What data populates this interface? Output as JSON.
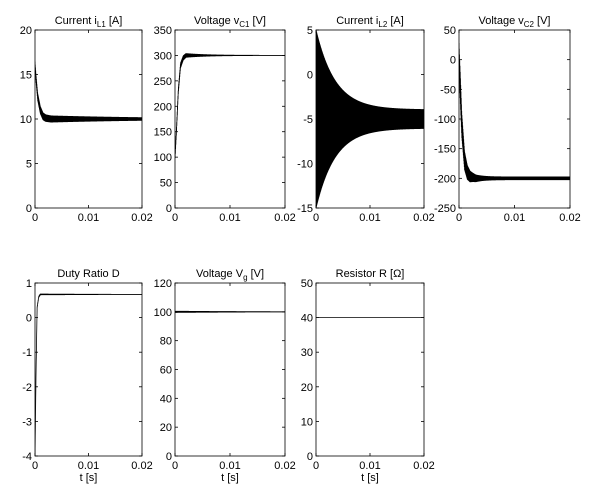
{
  "chart_data": [
    {
      "type": "line",
      "title": "Current i",
      "title_sub": "L1",
      "title_unit": " [A]",
      "xlabel": "",
      "ylabel": "",
      "xlim": [
        0,
        0.02
      ],
      "ylim": [
        0,
        20
      ],
      "xticks": [
        0,
        0.01,
        0.02
      ],
      "yticks": [
        0,
        5,
        10,
        15,
        20
      ],
      "series": [
        {
          "x": [
            0,
            0.0002,
            0.0005,
            0.001,
            0.0015,
            0.002,
            0.003,
            0.005,
            0.01,
            0.02
          ],
          "y": [
            16,
            14.5,
            12.5,
            11,
            10.3,
            10.1,
            10,
            10,
            10,
            10
          ],
          "oscillation_amplitude": 0.4,
          "oscillation_decay": 0.02
        }
      ]
    },
    {
      "type": "line",
      "title": "Voltage v",
      "title_sub": "C1",
      "title_unit": " [V]",
      "xlabel": "",
      "ylabel": "",
      "xlim": [
        0,
        0.02
      ],
      "ylim": [
        0,
        350
      ],
      "xticks": [
        0,
        0.01,
        0.02
      ],
      "yticks": [
        0,
        50,
        100,
        150,
        200,
        250,
        300,
        350
      ],
      "series": [
        {
          "x": [
            0,
            0.0003,
            0.0006,
            0.001,
            0.0015,
            0.002,
            0.003,
            0.005,
            0.01,
            0.02
          ],
          "y": [
            100,
            160,
            230,
            280,
            295,
            300,
            300,
            300,
            300,
            300
          ],
          "oscillation_amplitude": 6,
          "oscillation_decay": 0.004
        }
      ]
    },
    {
      "type": "line",
      "title": "Current i",
      "title_sub": "L2",
      "title_unit": " [A]",
      "xlabel": "",
      "ylabel": "",
      "xlim": [
        0,
        0.02
      ],
      "ylim": [
        -15,
        5
      ],
      "xticks": [
        0,
        0.01,
        0.02
      ],
      "yticks": [
        -15,
        -10,
        -5,
        0,
        5
      ],
      "series": [
        {
          "x": [
            0,
            0.02
          ],
          "y": [
            -5,
            -5
          ],
          "oscillation_amplitude": 9,
          "oscillation_decay": 0.0035
        }
      ]
    },
    {
      "type": "line",
      "title": "Voltage v",
      "title_sub": "C2",
      "title_unit": " [V]",
      "xlabel": "",
      "ylabel": "",
      "xlim": [
        0,
        0.02
      ],
      "ylim": [
        -250,
        50
      ],
      "xticks": [
        0,
        0.01,
        0.02
      ],
      "yticks": [
        -250,
        -200,
        -150,
        -100,
        -50,
        0,
        50
      ],
      "series": [
        {
          "x": [
            0,
            0.0002,
            0.0005,
            0.001,
            0.0015,
            0.002,
            0.003,
            0.005,
            0.01,
            0.02
          ],
          "y": [
            0,
            -40,
            -110,
            -170,
            -190,
            -197,
            -200,
            -200,
            -200,
            -200
          ],
          "oscillation_amplitude": 25,
          "oscillation_decay": 0.0015
        }
      ]
    },
    {
      "type": "line",
      "title": "Duty Ratio D",
      "title_sub": "",
      "title_unit": "",
      "xlabel": "t [s]",
      "ylabel": "",
      "xlim": [
        0,
        0.02
      ],
      "ylim": [
        -4,
        1
      ],
      "xticks": [
        0,
        0.01,
        0.02
      ],
      "yticks": [
        -4,
        -3,
        -2,
        -1,
        0,
        1
      ],
      "series": [
        {
          "x": [
            0,
            0.0002,
            0.0004,
            0.0007,
            0.001,
            0.002,
            0.005,
            0.01,
            0.02
          ],
          "y": [
            -4,
            -1.5,
            0.3,
            0.6,
            0.67,
            0.67,
            0.67,
            0.67,
            0.67
          ],
          "oscillation_amplitude": 0.02,
          "oscillation_decay": 0.02
        }
      ]
    },
    {
      "type": "line",
      "title": "Voltage V",
      "title_sub": "g",
      "title_unit": " [V]",
      "xlabel": "t [s]",
      "ylabel": "",
      "xlim": [
        0,
        0.02
      ],
      "ylim": [
        0,
        120
      ],
      "xticks": [
        0,
        0.01,
        0.02
      ],
      "yticks": [
        0,
        20,
        40,
        60,
        80,
        100,
        120
      ],
      "series": [
        {
          "x": [
            0,
            0.02
          ],
          "y": [
            100,
            100
          ],
          "oscillation_amplitude": 0.6,
          "oscillation_decay": 0.02
        }
      ]
    },
    {
      "type": "line",
      "title": "Resistor R [Ω]",
      "title_sub": "",
      "title_unit": "",
      "xlabel": "t [s]",
      "ylabel": "",
      "xlim": [
        0,
        0.02
      ],
      "ylim": [
        0,
        50
      ],
      "xticks": [
        0,
        0.01,
        0.02
      ],
      "yticks": [
        0,
        10,
        20,
        30,
        40,
        50
      ],
      "series": [
        {
          "x": [
            0,
            0.02
          ],
          "y": [
            40,
            40
          ],
          "oscillation_amplitude": 0,
          "oscillation_decay": 0.02
        }
      ]
    }
  ]
}
